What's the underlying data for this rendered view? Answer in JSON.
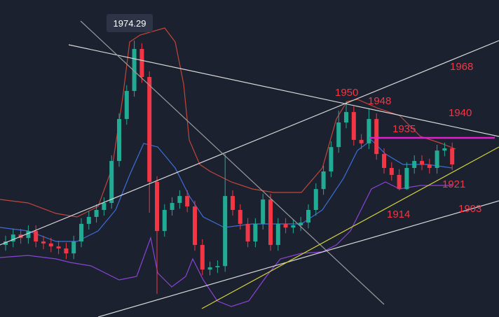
{
  "chart_data": {
    "type": "candlestick",
    "tooltip": "1974.29",
    "annotations": [
      "1968",
      "1950",
      "1948",
      "1940",
      "1935",
      "1921",
      "1914",
      "1903"
    ],
    "categories": [
      null,
      null,
      null,
      null,
      null,
      null,
      null,
      null,
      null,
      null,
      null,
      null,
      null,
      null,
      null,
      null,
      null,
      null,
      null,
      null,
      null,
      null,
      null,
      null,
      null,
      null,
      null,
      null,
      null,
      null,
      null,
      null,
      null,
      null,
      null,
      null,
      null,
      null,
      null,
      null,
      null,
      null,
      null,
      null,
      null,
      null,
      null,
      null,
      null,
      null,
      null,
      null,
      null,
      null,
      null,
      null,
      null,
      null,
      null,
      null
    ],
    "open": [
      1892.0,
      1893.4,
      1896.2,
      1894.8,
      1897.6,
      1893.4,
      1892.6,
      1891.4,
      1890.6,
      1888.6,
      1893.4,
      1900.5,
      1903.3,
      1906.1,
      1908.9,
      1925.8,
      1942.7,
      1954.0,
      1970.9,
      1959.6,
      1917.4,
      1897.6,
      1906.1,
      1908.9,
      1911.7,
      1907.5,
      1892.0,
      1882.1,
      1883.0,
      1883.5,
      1911.7,
      1906.1,
      1900.5,
      1893.4,
      1900.5,
      1910.3,
      1892.0,
      1900.5,
      1899.0,
      1899.9,
      1901.0,
      1906.1,
      1914.5,
      1921.6,
      1931.4,
      1941.3,
      1945.5,
      1934.3,
      1932.9,
      1942.7,
      1928.6,
      1923.0,
      1920.2,
      1914.5,
      1923.0,
      1925.8,
      1924.4,
      1923.0,
      1930.0,
      1930.9
    ],
    "close": [
      1893.4,
      1896.2,
      1894.8,
      1897.6,
      1893.4,
      1892.6,
      1891.4,
      1890.6,
      1888.6,
      1893.4,
      1900.5,
      1903.3,
      1906.1,
      1908.9,
      1925.8,
      1942.7,
      1954.0,
      1970.9,
      1959.6,
      1917.4,
      1897.6,
      1906.1,
      1908.9,
      1911.7,
      1907.5,
      1892.0,
      1882.1,
      1883.0,
      1883.5,
      1911.7,
      1906.1,
      1900.5,
      1893.4,
      1900.5,
      1910.3,
      1892.0,
      1900.5,
      1899.0,
      1899.9,
      1901.0,
      1906.1,
      1914.5,
      1921.6,
      1931.4,
      1941.3,
      1945.5,
      1934.3,
      1932.9,
      1942.7,
      1928.6,
      1923.0,
      1920.2,
      1914.5,
      1923.0,
      1925.8,
      1924.4,
      1923.0,
      1930.0,
      1930.9,
      1924.4
    ],
    "high": [
      1895.7,
      1898.5,
      1898.5,
      1899.9,
      1899.9,
      1895.7,
      1894.9,
      1893.7,
      1892.9,
      1895.7,
      1902.8,
      1905.6,
      1908.4,
      1911.2,
      1928.1,
      1945.0,
      1956.3,
      1974.29,
      1973.2,
      1961.9,
      1919.7,
      1908.4,
      1911.2,
      1914.0,
      1914.0,
      1909.8,
      1894.3,
      1885.3,
      1885.8,
      1928.6,
      1914.0,
      1908.4,
      1902.8,
      1902.8,
      1912.6,
      1912.6,
      1902.8,
      1902.8,
      1902.2,
      1903.3,
      1908.4,
      1916.8,
      1923.9,
      1933.7,
      1946.0,
      1949.8,
      1947.8,
      1936.6,
      1947.0,
      1945.0,
      1930.9,
      1925.3,
      1922.5,
      1925.3,
      1928.1,
      1928.1,
      1926.7,
      1932.3,
      1933.2,
      1933.2
    ],
    "low": [
      1889.7,
      1891.1,
      1892.5,
      1892.5,
      1891.1,
      1890.3,
      1889.1,
      1888.3,
      1886.3,
      1886.3,
      1891.1,
      1898.2,
      1901.0,
      1903.8,
      1906.6,
      1923.5,
      1940.4,
      1951.7,
      1957.3,
      1905.0,
      1872.3,
      1895.3,
      1903.8,
      1906.6,
      1905.2,
      1889.7,
      1879.8,
      1879.8,
      1880.7,
      1881.2,
      1903.8,
      1898.2,
      1891.1,
      1891.1,
      1898.2,
      1889.7,
      1889.7,
      1896.7,
      1896.7,
      1897.6,
      1898.7,
      1903.8,
      1912.2,
      1919.3,
      1929.1,
      1939.0,
      1932.0,
      1930.6,
      1930.6,
      1926.3,
      1920.7,
      1917.9,
      1914.0,
      1914.2,
      1920.7,
      1922.1,
      1920.7,
      1920.7,
      1927.7,
      1922.1
    ],
    "up_color": "#22ab94",
    "down_color": "#f23645",
    "ylim": [
      1863.0,
      1990.6
    ]
  }
}
